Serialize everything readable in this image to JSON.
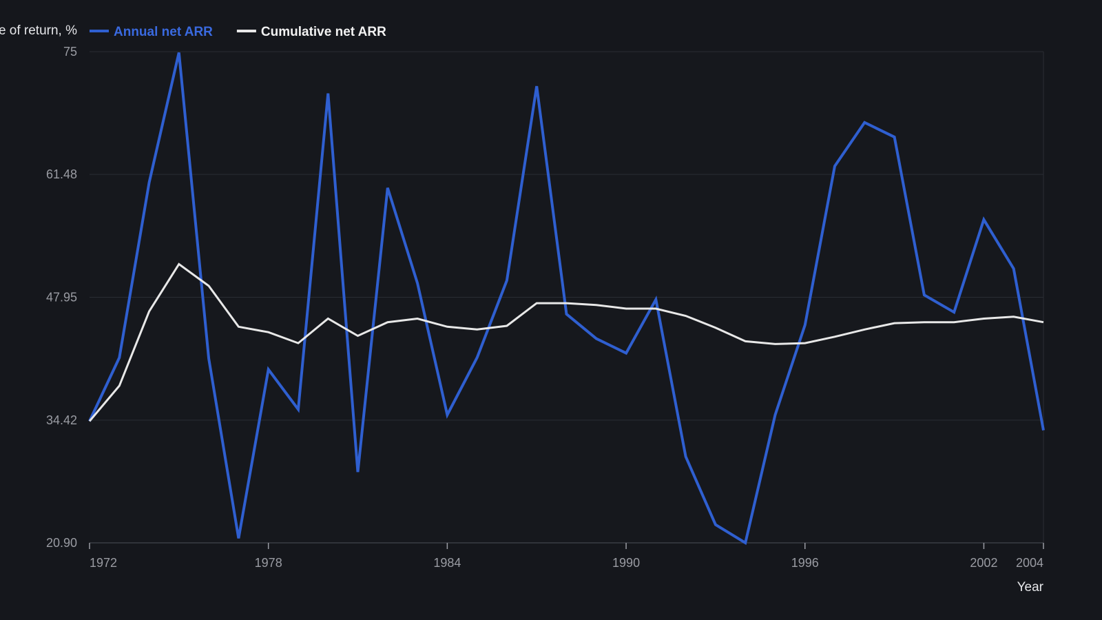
{
  "chart_data": {
    "type": "line",
    "title": "",
    "xlabel": "Year",
    "ylabel": "Rate of return, %",
    "xlim": [
      1972,
      2004
    ],
    "ylim": [
      20.9,
      75
    ],
    "y_ticks": [
      "20.90",
      "34.42",
      "47.95",
      "61.48",
      "75"
    ],
    "x_ticks": [
      "1972",
      "1978",
      "1984",
      "1990",
      "1996",
      "2002",
      "2004"
    ],
    "grid": "horizontal",
    "legend_position": "top-left",
    "background": "#15171c",
    "x": [
      1972,
      1973,
      1974,
      1975,
      1976,
      1977,
      1978,
      1979,
      1980,
      1981,
      1982,
      1983,
      1984,
      1985,
      1986,
      1987,
      1988,
      1989,
      1990,
      1991,
      1992,
      1993,
      1994,
      1995,
      1996,
      1997,
      1998,
      1999,
      2000,
      2001,
      2002,
      2003,
      2004
    ],
    "series": [
      {
        "name": "Annual net ARR",
        "color": "#2f5fd0",
        "values": [
          34.3,
          41.3,
          60.6,
          74.9,
          41.2,
          21.4,
          40.0,
          35.6,
          70.4,
          28.7,
          60.0,
          49.5,
          35.0,
          41.3,
          49.8,
          71.2,
          46.1,
          43.4,
          41.8,
          47.7,
          30.4,
          22.9,
          20.9,
          35.0,
          44.9,
          62.4,
          67.2,
          65.6,
          48.2,
          46.3,
          56.5,
          51.1,
          33.3
        ]
      },
      {
        "name": "Cumulative net ARR",
        "color": "#e8e8e8",
        "values": [
          34.3,
          38.2,
          46.4,
          51.6,
          49.2,
          44.7,
          44.1,
          42.9,
          45.6,
          43.7,
          45.2,
          45.6,
          44.7,
          44.4,
          44.8,
          47.3,
          47.3,
          47.1,
          46.7,
          46.7,
          45.9,
          44.6,
          43.1,
          42.8,
          42.9,
          43.6,
          44.4,
          45.1,
          45.2,
          45.2,
          45.6,
          45.8,
          45.2
        ]
      }
    ]
  }
}
